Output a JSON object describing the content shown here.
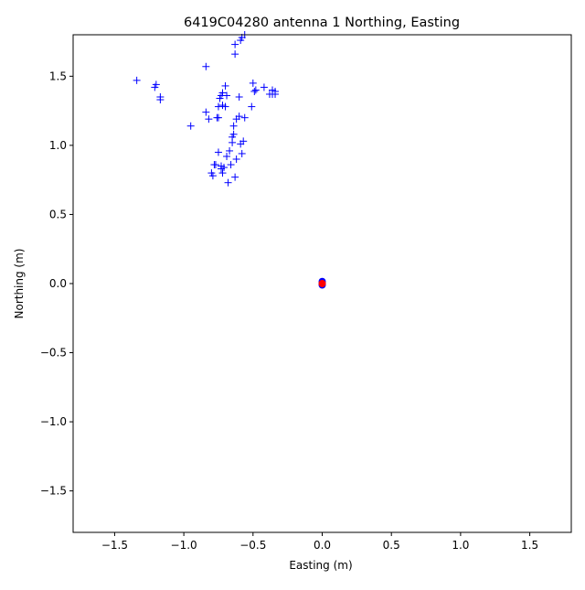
{
  "chart_data": {
    "type": "scatter",
    "title": "6419C04280 antenna 1 Northing, Easting",
    "xlabel": "Easting (m)",
    "ylabel": "Northing (m)",
    "xlim": [
      -1.8,
      1.8
    ],
    "ylim": [
      -1.8,
      1.8
    ],
    "xticks": [
      -1.5,
      -1.0,
      -0.5,
      0.0,
      0.5,
      1.0,
      1.5
    ],
    "yticks": [
      -1.5,
      -1.0,
      -0.5,
      0.0,
      0.5,
      1.0,
      1.5
    ],
    "xtick_labels": [
      "−1.5",
      "−1.0",
      "−0.5",
      "0.0",
      "0.5",
      "1.0",
      "1.5"
    ],
    "ytick_labels": [
      "−1.5",
      "−1.0",
      "−0.5",
      "0.0",
      "0.5",
      "1.0",
      "1.5"
    ],
    "grid": false,
    "series": [
      {
        "marker": "plus",
        "color": "#0000ff",
        "points": [
          [
            -0.56,
            1.8
          ],
          [
            -0.58,
            1.78
          ],
          [
            -0.59,
            1.76
          ],
          [
            -0.63,
            1.73
          ],
          [
            -0.63,
            1.66
          ],
          [
            -0.84,
            1.57
          ],
          [
            -1.34,
            1.47
          ],
          [
            -1.2,
            1.44
          ],
          [
            -1.21,
            1.42
          ],
          [
            -1.17,
            1.35
          ],
          [
            -1.17,
            1.33
          ],
          [
            -0.7,
            1.43
          ],
          [
            -0.72,
            1.38
          ],
          [
            -0.73,
            1.36
          ],
          [
            -0.69,
            1.36
          ],
          [
            -0.74,
            1.34
          ],
          [
            -0.6,
            1.35
          ],
          [
            -0.5,
            1.45
          ],
          [
            -0.49,
            1.39
          ],
          [
            -0.48,
            1.4
          ],
          [
            -0.42,
            1.42
          ],
          [
            -0.36,
            1.4
          ],
          [
            -0.36,
            1.37
          ],
          [
            -0.34,
            1.39
          ],
          [
            -0.34,
            1.37
          ],
          [
            -0.38,
            1.37
          ],
          [
            -0.51,
            1.28
          ],
          [
            -0.72,
            1.29
          ],
          [
            -0.7,
            1.28
          ],
          [
            -0.75,
            1.28
          ],
          [
            -0.84,
            1.24
          ],
          [
            -0.82,
            1.19
          ],
          [
            -0.75,
            1.2
          ],
          [
            -0.76,
            1.2
          ],
          [
            -0.6,
            1.21
          ],
          [
            -0.62,
            1.19
          ],
          [
            -0.56,
            1.2
          ],
          [
            -0.64,
            1.14
          ],
          [
            -0.95,
            1.14
          ],
          [
            -0.64,
            1.08
          ],
          [
            -0.65,
            1.06
          ],
          [
            -0.65,
            1.02
          ],
          [
            -0.57,
            1.03
          ],
          [
            -0.59,
            1.01
          ],
          [
            -0.75,
            0.95
          ],
          [
            -0.69,
            0.92
          ],
          [
            -0.67,
            0.96
          ],
          [
            -0.58,
            0.94
          ],
          [
            -0.62,
            0.9
          ],
          [
            -0.77,
            0.86
          ],
          [
            -0.78,
            0.86
          ],
          [
            -0.66,
            0.86
          ],
          [
            -0.73,
            0.85
          ],
          [
            -0.73,
            0.83
          ],
          [
            -0.71,
            0.84
          ],
          [
            -0.8,
            0.8
          ],
          [
            -0.79,
            0.78
          ],
          [
            -0.72,
            0.8
          ],
          [
            -0.63,
            0.77
          ],
          [
            -0.68,
            0.73
          ]
        ]
      },
      {
        "marker": "dot",
        "color": "#0000ff",
        "points": [
          [
            0.0,
            0.015
          ],
          [
            0.0,
            0.0
          ],
          [
            0.0,
            -0.01
          ]
        ]
      },
      {
        "marker": "dot",
        "color": "#ff0000",
        "points": [
          [
            0.0,
            0.0
          ]
        ]
      }
    ]
  }
}
